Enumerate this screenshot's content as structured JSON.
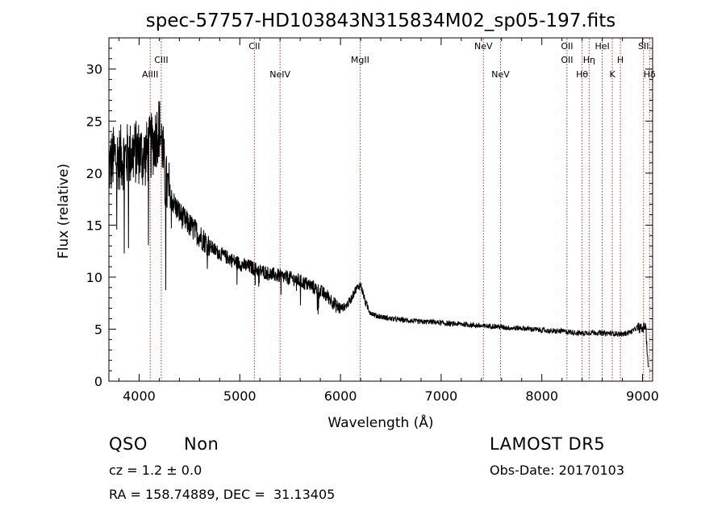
{
  "chart_data": {
    "type": "line",
    "title": "spec-57757-HD103843N315834M02_sp05-197.fits",
    "xlabel": "Wavelength (Å)",
    "ylabel": "Flux (relative)",
    "xlim": [
      3700,
      9100
    ],
    "ylim": [
      0,
      33
    ],
    "xticks": [
      4000,
      5000,
      6000,
      7000,
      8000,
      9000
    ],
    "yticks": [
      0,
      5,
      10,
      15,
      20,
      25,
      30
    ],
    "grid": false,
    "line_color": "#000000",
    "marker_color": "#b03030",
    "spectrum": {
      "x": [
        3700,
        3750,
        3800,
        3850,
        3900,
        3950,
        4000,
        4050,
        4100,
        4150,
        4200,
        4230,
        4260,
        4300,
        4350,
        4400,
        4450,
        4500,
        4550,
        4600,
        4650,
        4700,
        4750,
        4800,
        4850,
        4900,
        4950,
        5000,
        5050,
        5100,
        5150,
        5200,
        5250,
        5300,
        5350,
        5400,
        5450,
        5500,
        5550,
        5600,
        5650,
        5700,
        5750,
        5800,
        5850,
        5900,
        5950,
        6000,
        6050,
        6100,
        6150,
        6200,
        6250,
        6300,
        6350,
        6400,
        6450,
        6500,
        6600,
        6700,
        6800,
        6900,
        7000,
        7100,
        7200,
        7300,
        7400,
        7500,
        7600,
        7700,
        7800,
        7900,
        8000,
        8100,
        8200,
        8300,
        8400,
        8500,
        8600,
        8700,
        8800,
        8900,
        8950,
        9000,
        9030,
        9060
      ],
      "y": [
        20.5,
        21.5,
        21.5,
        21.5,
        21.8,
        22.0,
        22.0,
        21.5,
        22.3,
        23.0,
        24.5,
        22.8,
        19.0,
        18.0,
        17.0,
        16.2,
        15.5,
        15.0,
        14.5,
        14.0,
        13.5,
        13.0,
        12.6,
        12.3,
        12.0,
        11.8,
        11.5,
        11.3,
        11.1,
        11.0,
        10.8,
        10.6,
        10.5,
        10.3,
        10.2,
        10.1,
        10.0,
        9.9,
        9.8,
        9.6,
        9.4,
        9.2,
        8.9,
        8.6,
        8.3,
        7.9,
        7.3,
        7.0,
        7.2,
        7.8,
        8.8,
        9.3,
        7.5,
        6.6,
        6.3,
        6.2,
        6.1,
        6.0,
        5.9,
        5.8,
        5.7,
        5.7,
        5.6,
        5.5,
        5.5,
        5.4,
        5.3,
        5.3,
        5.2,
        5.1,
        5.1,
        5.0,
        4.9,
        4.8,
        4.8,
        4.7,
        4.6,
        4.7,
        4.6,
        4.6,
        4.5,
        4.8,
        5.2,
        5.0,
        5.4,
        1.0
      ]
    },
    "lines": [
      {
        "label": "AlIII",
        "x": 4110,
        "row": 3
      },
      {
        "label": "CIII",
        "x": 4220,
        "row": 2
      },
      {
        "label": "CII",
        "x": 5145,
        "row": 1
      },
      {
        "label": "NeIV",
        "x": 5400,
        "row": 3
      },
      {
        "label": "MgII",
        "x": 6195,
        "row": 2
      },
      {
        "label": "NeV",
        "x": 7420,
        "row": 1
      },
      {
        "label": "NeV",
        "x": 7590,
        "row": 3
      },
      {
        "label": "OII",
        "x": 8250,
        "row": 1
      },
      {
        "label": "OII",
        "x": 8250,
        "row": 2
      },
      {
        "label": "Hθ",
        "x": 8400,
        "row": 3
      },
      {
        "label": "Hη",
        "x": 8470,
        "row": 2
      },
      {
        "label": "HeI",
        "x": 8600,
        "row": 1
      },
      {
        "label": "K",
        "x": 8700,
        "row": 3
      },
      {
        "label": "H",
        "x": 8780,
        "row": 2
      },
      {
        "label": "SII",
        "x": 9010,
        "row": 1
      },
      {
        "label": "Hδ",
        "x": 9070,
        "row": 3
      }
    ]
  },
  "info": {
    "class": "QSO",
    "subclass": "Non",
    "survey": "LAMOST DR5",
    "cz": "cz = 1.2 ± 0.0",
    "obs_date": "Obs-Date: 20170103",
    "coords": "RA = 158.74889, DEC =  31.13405"
  }
}
